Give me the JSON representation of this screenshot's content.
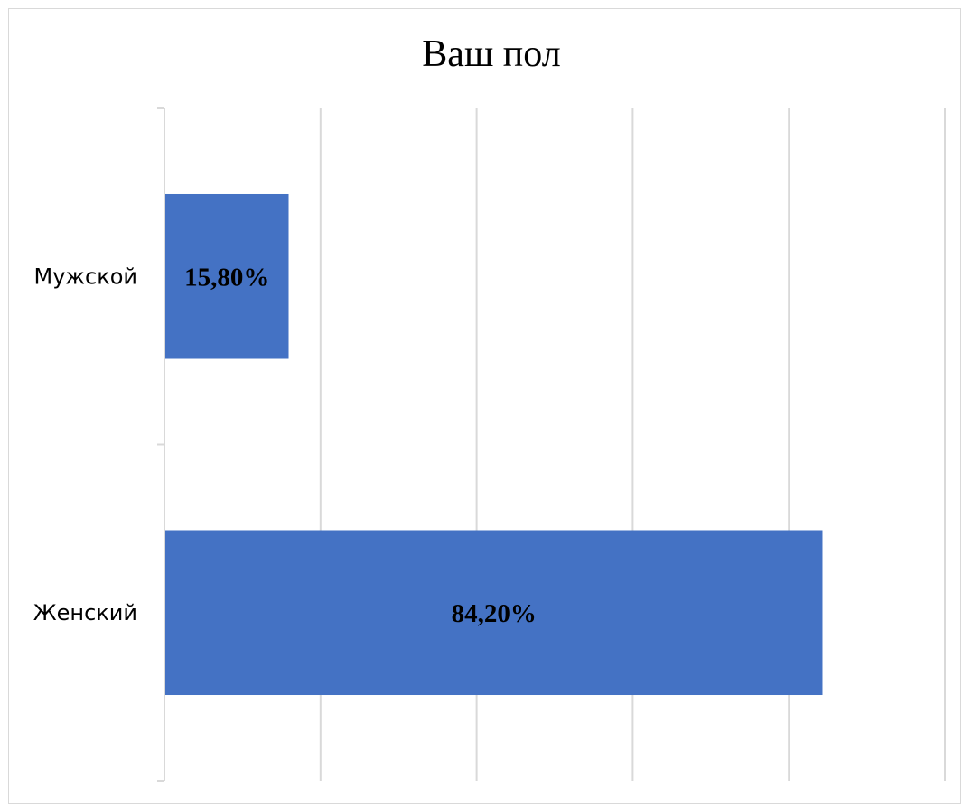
{
  "chart_data": {
    "type": "bar",
    "orientation": "horizontal",
    "title": "Ваш пол",
    "categories": [
      "Мужской",
      "Женский"
    ],
    "values": [
      15.8,
      84.2
    ],
    "data_labels": [
      "15,80%",
      "84,20%"
    ],
    "xlim": [
      0,
      100
    ],
    "grid": true,
    "legend": "none",
    "bar_color": "#4472C4"
  }
}
